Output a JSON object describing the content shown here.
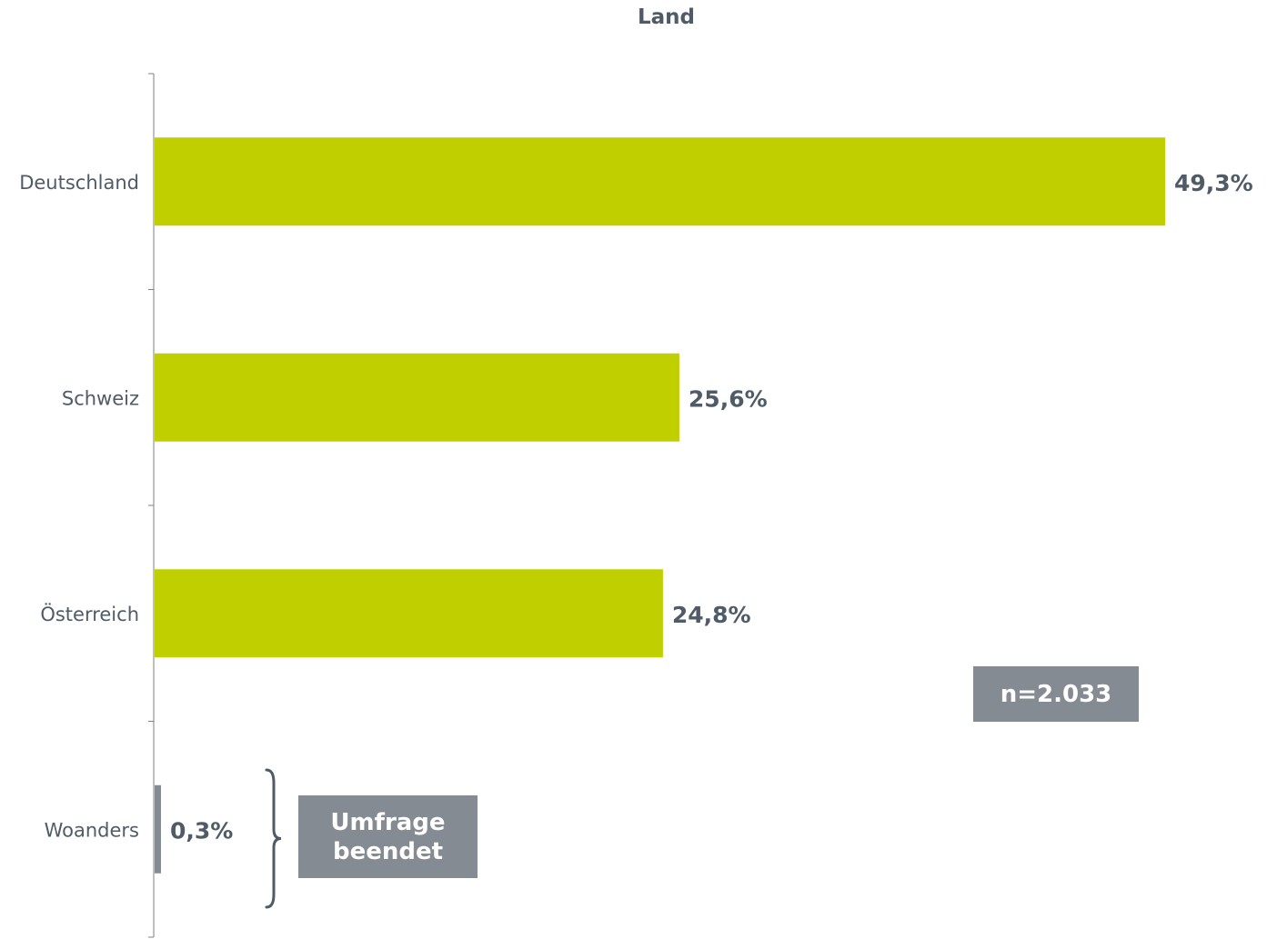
{
  "chart_data": {
    "type": "bar",
    "orientation": "horizontal",
    "title": "Land",
    "categories": [
      "Deutschland",
      "Schweiz",
      "Österreich",
      "Woanders"
    ],
    "values": [
      49.3,
      25.6,
      24.8,
      0.3
    ],
    "value_labels": [
      "49,3%",
      "25,6%",
      "24,8%",
      "0,3%"
    ],
    "xlim": [
      0,
      49.3
    ],
    "grid": false,
    "colors": [
      "#c0cf00",
      "#c0cf00",
      "#c0cf00",
      "#858b93"
    ],
    "axis_color": "#7f7f7f",
    "label_color": "#4f5b66"
  },
  "annotations": {
    "sample_size": "n=2.033",
    "survey_end_line1": "Umfrage",
    "survey_end_line2": "beendet"
  }
}
